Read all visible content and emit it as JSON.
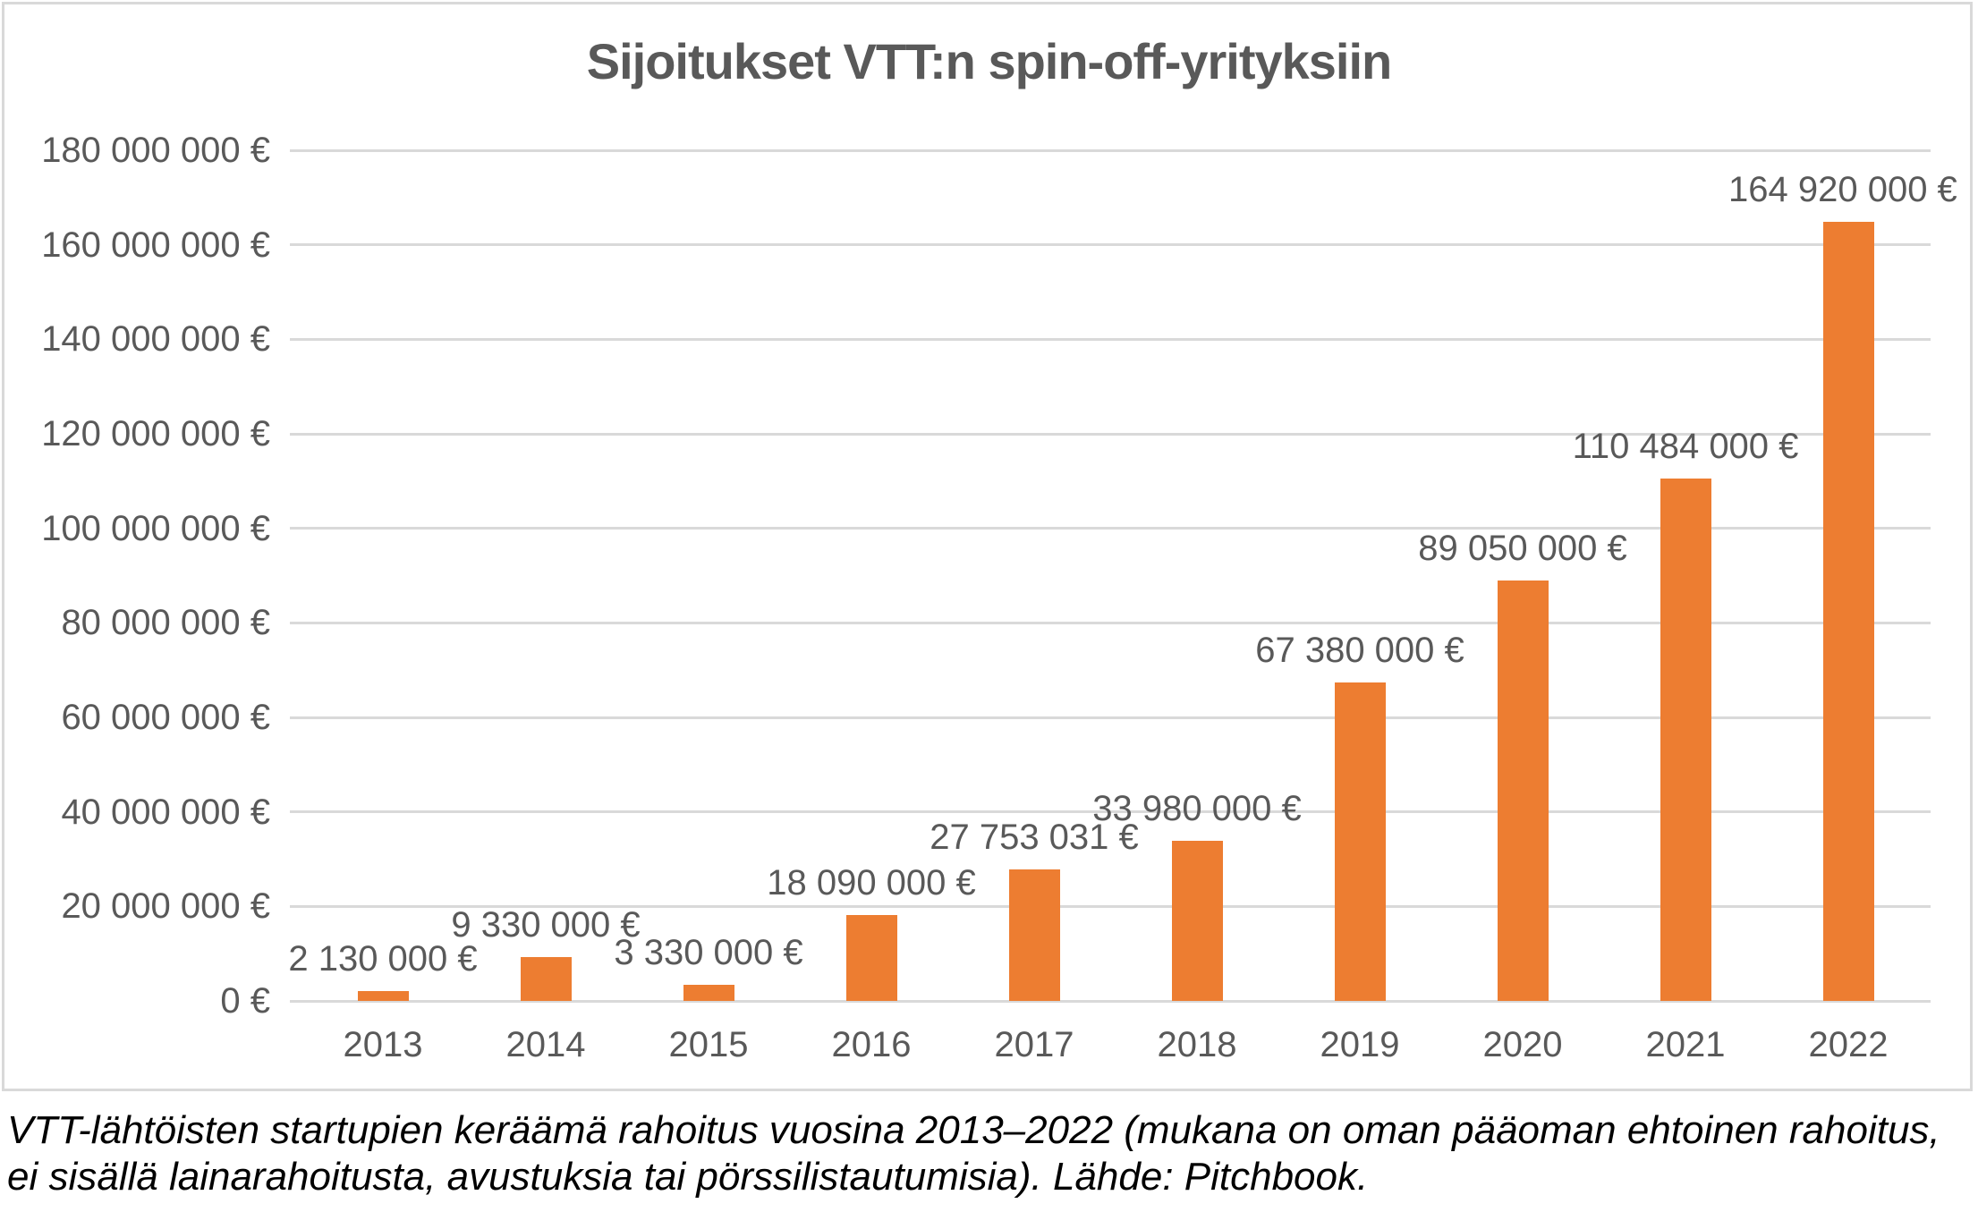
{
  "chart_data": {
    "type": "bar",
    "title": "Sijoitukset VTT:n spin-off-yrityksiin",
    "xlabel": "",
    "ylabel": "",
    "grid": true,
    "legend": false,
    "categories": [
      "2013",
      "2014",
      "2015",
      "2016",
      "2017",
      "2018",
      "2019",
      "2020",
      "2021",
      "2022"
    ],
    "values": [
      2130000,
      9330000,
      3330000,
      18090000,
      27753031,
      33980000,
      67380000,
      89050000,
      110484000,
      164920000
    ],
    "bar_labels": [
      "2 130 000 €",
      "9 330 000 €",
      "3 330 000 €",
      "18 090 000 €",
      "27 753 031 €",
      "33 980 000 €",
      "67 380 000 €",
      "89 050 000 €",
      "110 484 000 €",
      "164 920 000 €"
    ],
    "ylim": [
      0,
      180000000
    ],
    "ytick_step": 20000000,
    "yticks": [
      {
        "value": 0,
        "label": "0 €"
      },
      {
        "value": 20000000,
        "label": "20 000 000 €"
      },
      {
        "value": 40000000,
        "label": "40 000 000 €"
      },
      {
        "value": 60000000,
        "label": "60 000 000 €"
      },
      {
        "value": 80000000,
        "label": "80 000 000 €"
      },
      {
        "value": 100000000,
        "label": "100 000 000 €"
      },
      {
        "value": 120000000,
        "label": "120 000 000 €"
      },
      {
        "value": 140000000,
        "label": "140 000 000 €"
      },
      {
        "value": 160000000,
        "label": "160 000 000 €"
      },
      {
        "value": 180000000,
        "label": "180 000 000 €"
      }
    ],
    "bar_color": "#ED7D31",
    "grid_color": "#D9D9D9",
    "axis_text_color": "#595959",
    "title_color": "#595959",
    "border_color": "#D9D9D9"
  },
  "caption": "VTT-lähtöisten startupien keräämä rahoitus vuosina 2013–2022 (mukana on oman pääoman ehtoinen rahoitus, ei sisällä lainarahoitusta, avustuksia tai pörssilistautumisia). Lähde: Pitchbook."
}
